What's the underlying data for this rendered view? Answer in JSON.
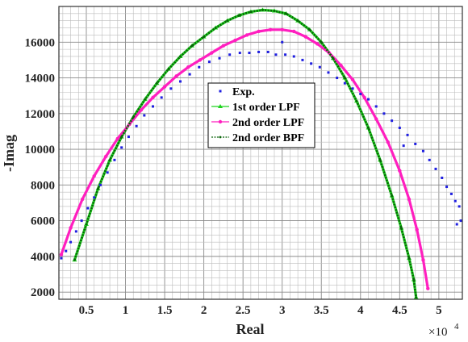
{
  "chart_data": {
    "type": "scatter",
    "xlabel": "Real",
    "ylabel": "-Imag",
    "x_multiplier": "×10",
    "x_multiplier_exp": "4",
    "xlim": [
      1500,
      53000
    ],
    "ylim": [
      1600,
      18000
    ],
    "xticks": [
      5000,
      10000,
      15000,
      20000,
      25000,
      30000,
      35000,
      40000,
      45000,
      50000
    ],
    "xtick_labels": [
      "0.5",
      "1",
      "1.5",
      "2",
      "2.5",
      "3",
      "3.5",
      "4",
      "4.5",
      "5"
    ],
    "yticks": [
      2000,
      4000,
      6000,
      8000,
      10000,
      12000,
      14000,
      16000
    ],
    "ytick_labels": [
      "2000",
      "4000",
      "6000",
      "8000",
      "10000",
      "12000",
      "14000",
      "16000"
    ],
    "grid": true,
    "legend_position": "center",
    "series": [
      {
        "name": "Exp.",
        "color": "#1f1fe0",
        "marker": "square",
        "points": [
          [
            1800,
            3900
          ],
          [
            2400,
            4300
          ],
          [
            3000,
            4800
          ],
          [
            3700,
            5400
          ],
          [
            4400,
            6000
          ],
          [
            5200,
            6700
          ],
          [
            6000,
            7300
          ],
          [
            6800,
            8000
          ],
          [
            7700,
            8700
          ],
          [
            8600,
            9400
          ],
          [
            9500,
            10100
          ],
          [
            10400,
            10700
          ],
          [
            11400,
            11300
          ],
          [
            12400,
            11900
          ],
          [
            13500,
            12400
          ],
          [
            14600,
            12900
          ],
          [
            15800,
            13400
          ],
          [
            17000,
            13800
          ],
          [
            18200,
            14200
          ],
          [
            19400,
            14600
          ],
          [
            20700,
            14900
          ],
          [
            22000,
            15100
          ],
          [
            23300,
            15300
          ],
          [
            24600,
            15400
          ],
          [
            25800,
            15400
          ],
          [
            27000,
            15450
          ],
          [
            28200,
            15450
          ],
          [
            29200,
            15300
          ],
          [
            30000,
            16000
          ],
          [
            30400,
            15300
          ],
          [
            31500,
            15200
          ],
          [
            32600,
            15000
          ],
          [
            33700,
            14800
          ],
          [
            34800,
            14600
          ],
          [
            35900,
            14300
          ],
          [
            37000,
            14000
          ],
          [
            38000,
            13700
          ],
          [
            39000,
            13400
          ],
          [
            40000,
            13100
          ],
          [
            41000,
            12800
          ],
          [
            42000,
            12400
          ],
          [
            43000,
            12000
          ],
          [
            44000,
            11600
          ],
          [
            45000,
            11200
          ],
          [
            45500,
            10200
          ],
          [
            46000,
            10800
          ],
          [
            47000,
            10300
          ],
          [
            48000,
            9900
          ],
          [
            48800,
            9400
          ],
          [
            49600,
            8900
          ],
          [
            50400,
            8400
          ],
          [
            51000,
            7900
          ],
          [
            51600,
            7500
          ],
          [
            52100,
            7100
          ],
          [
            52600,
            6800
          ],
          [
            52800,
            6000
          ],
          [
            52300,
            5800
          ]
        ]
      },
      {
        "name": "1st order LPF",
        "color": "#1ed31e",
        "marker": "triangle",
        "points": [
          [
            3500,
            3800
          ],
          [
            5000,
            5800
          ],
          [
            6500,
            7800
          ],
          [
            8000,
            9400
          ],
          [
            9500,
            10700
          ],
          [
            11000,
            11800
          ],
          [
            12500,
            12800
          ],
          [
            14000,
            13700
          ],
          [
            15500,
            14500
          ],
          [
            17000,
            15200
          ],
          [
            18500,
            15800
          ],
          [
            20000,
            16300
          ],
          [
            21500,
            16800
          ],
          [
            23000,
            17200
          ],
          [
            24500,
            17500
          ],
          [
            26000,
            17700
          ],
          [
            27500,
            17800
          ],
          [
            29000,
            17750
          ],
          [
            30500,
            17600
          ],
          [
            32000,
            17200
          ],
          [
            33500,
            16700
          ],
          [
            35000,
            16000
          ],
          [
            36500,
            15100
          ],
          [
            38000,
            14000
          ],
          [
            39500,
            12700
          ],
          [
            41000,
            11200
          ],
          [
            42500,
            9400
          ],
          [
            44000,
            7400
          ],
          [
            45200,
            5600
          ],
          [
            46200,
            3900
          ],
          [
            46800,
            2700
          ],
          [
            47100,
            1700
          ]
        ]
      },
      {
        "name": "2nd order LPF",
        "color": "#ff1fbf",
        "marker": "star",
        "points": [
          [
            1800,
            4100
          ],
          [
            3000,
            5600
          ],
          [
            4500,
            7200
          ],
          [
            6000,
            8500
          ],
          [
            7500,
            9600
          ],
          [
            9000,
            10600
          ],
          [
            10500,
            11400
          ],
          [
            12000,
            12200
          ],
          [
            13500,
            12900
          ],
          [
            15000,
            13500
          ],
          [
            16500,
            14100
          ],
          [
            18000,
            14600
          ],
          [
            19500,
            15000
          ],
          [
            21000,
            15400
          ],
          [
            22500,
            15800
          ],
          [
            24000,
            16100
          ],
          [
            25500,
            16400
          ],
          [
            27000,
            16600
          ],
          [
            28500,
            16700
          ],
          [
            30000,
            16700
          ],
          [
            31500,
            16600
          ],
          [
            33000,
            16300
          ],
          [
            34500,
            15900
          ],
          [
            36000,
            15400
          ],
          [
            37500,
            14700
          ],
          [
            39000,
            13900
          ],
          [
            40500,
            12900
          ],
          [
            42000,
            11700
          ],
          [
            43500,
            10400
          ],
          [
            45000,
            8800
          ],
          [
            46200,
            7200
          ],
          [
            47200,
            5500
          ],
          [
            48000,
            3800
          ],
          [
            48600,
            2200
          ]
        ]
      },
      {
        "name": "2nd order BPF",
        "color": "#0a640a",
        "marker": "dot",
        "points": [
          [
            3500,
            3800
          ],
          [
            5000,
            5800
          ],
          [
            6500,
            7800
          ],
          [
            8000,
            9400
          ],
          [
            9500,
            10700
          ],
          [
            11000,
            11800
          ],
          [
            12500,
            12800
          ],
          [
            14000,
            13700
          ],
          [
            15500,
            14500
          ],
          [
            17000,
            15200
          ],
          [
            18500,
            15800
          ],
          [
            20000,
            16300
          ],
          [
            21500,
            16800
          ],
          [
            23000,
            17200
          ],
          [
            24500,
            17500
          ],
          [
            26000,
            17700
          ],
          [
            27500,
            17800
          ],
          [
            29000,
            17750
          ],
          [
            30500,
            17600
          ],
          [
            32000,
            17200
          ],
          [
            33500,
            16700
          ],
          [
            35000,
            16000
          ],
          [
            36500,
            15100
          ],
          [
            38000,
            14000
          ],
          [
            39500,
            12700
          ],
          [
            41000,
            11200
          ],
          [
            42500,
            9400
          ],
          [
            44000,
            7400
          ],
          [
            45200,
            5600
          ],
          [
            46200,
            3900
          ],
          [
            46800,
            2700
          ],
          [
            47100,
            1700
          ]
        ]
      }
    ]
  }
}
